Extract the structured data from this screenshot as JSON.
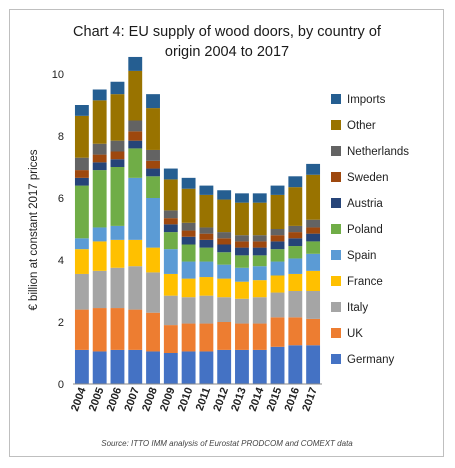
{
  "chart_data": {
    "type": "bar",
    "stacked": true,
    "title_lines": [
      "Chart 4: EU supply of wood doors, by country of",
      "origin 2004 to 2017"
    ],
    "ylabel": "€ billion at constant 2017 prices",
    "xlabel": "",
    "ylim": [
      0,
      10
    ],
    "yticks": [
      0,
      2,
      4,
      6,
      8,
      10
    ],
    "categories": [
      "2004",
      "2005",
      "2006",
      "2007",
      "2008",
      "2009",
      "2010",
      "2011",
      "2012",
      "2013",
      "2014",
      "2015",
      "2016",
      "2017"
    ],
    "series": [
      {
        "name": "Germany",
        "color": "#4472c4",
        "values": [
          1.1,
          1.05,
          1.1,
          1.1,
          1.05,
          1.0,
          1.05,
          1.05,
          1.1,
          1.1,
          1.1,
          1.2,
          1.25,
          1.25
        ]
      },
      {
        "name": "UK",
        "color": "#ed7d31",
        "values": [
          1.3,
          1.4,
          1.35,
          1.3,
          1.25,
          0.9,
          0.9,
          0.9,
          0.9,
          0.85,
          0.85,
          0.95,
          0.9,
          0.85
        ]
      },
      {
        "name": "Italy",
        "color": "#a5a5a5",
        "values": [
          1.15,
          1.2,
          1.3,
          1.4,
          1.3,
          0.95,
          0.85,
          0.9,
          0.8,
          0.8,
          0.85,
          0.8,
          0.85,
          0.9
        ]
      },
      {
        "name": "France",
        "color": "#ffc000",
        "values": [
          0.8,
          0.95,
          0.9,
          0.85,
          0.8,
          0.7,
          0.6,
          0.6,
          0.6,
          0.55,
          0.55,
          0.55,
          0.55,
          0.65
        ]
      },
      {
        "name": "Spain",
        "color": "#5b9bd5",
        "values": [
          0.35,
          0.45,
          0.45,
          2.0,
          1.6,
          0.8,
          0.55,
          0.5,
          0.45,
          0.45,
          0.45,
          0.45,
          0.5,
          0.55
        ]
      },
      {
        "name": "Poland",
        "color": "#70ad47",
        "values": [
          1.7,
          1.85,
          1.9,
          0.95,
          0.7,
          0.55,
          0.55,
          0.45,
          0.4,
          0.4,
          0.35,
          0.4,
          0.4,
          0.4
        ]
      },
      {
        "name": "Austria",
        "color": "#264478",
        "values": [
          0.25,
          0.25,
          0.25,
          0.25,
          0.25,
          0.25,
          0.25,
          0.25,
          0.25,
          0.25,
          0.25,
          0.25,
          0.25,
          0.25
        ]
      },
      {
        "name": "Sweden",
        "color": "#9e480e",
        "values": [
          0.25,
          0.25,
          0.25,
          0.3,
          0.25,
          0.2,
          0.2,
          0.2,
          0.2,
          0.2,
          0.2,
          0.2,
          0.2,
          0.2
        ]
      },
      {
        "name": "Netherlands",
        "color": "#636363",
        "values": [
          0.4,
          0.35,
          0.35,
          0.35,
          0.35,
          0.25,
          0.25,
          0.2,
          0.2,
          0.2,
          0.2,
          0.2,
          0.2,
          0.25
        ]
      },
      {
        "name": "Other",
        "color": "#997300",
        "values": [
          1.35,
          1.4,
          1.5,
          1.6,
          1.35,
          1.0,
          1.1,
          1.05,
          1.05,
          1.05,
          1.05,
          1.1,
          1.25,
          1.45
        ]
      },
      {
        "name": "Imports",
        "color": "#255e91",
        "values": [
          0.35,
          0.35,
          0.4,
          0.45,
          0.45,
          0.35,
          0.35,
          0.3,
          0.3,
          0.3,
          0.3,
          0.3,
          0.35,
          0.35
        ]
      }
    ],
    "legend_position": "right",
    "grid": false,
    "source": "Source: ITTO IMM analysis of Eurostat PRODCOM and COMEXT data"
  }
}
